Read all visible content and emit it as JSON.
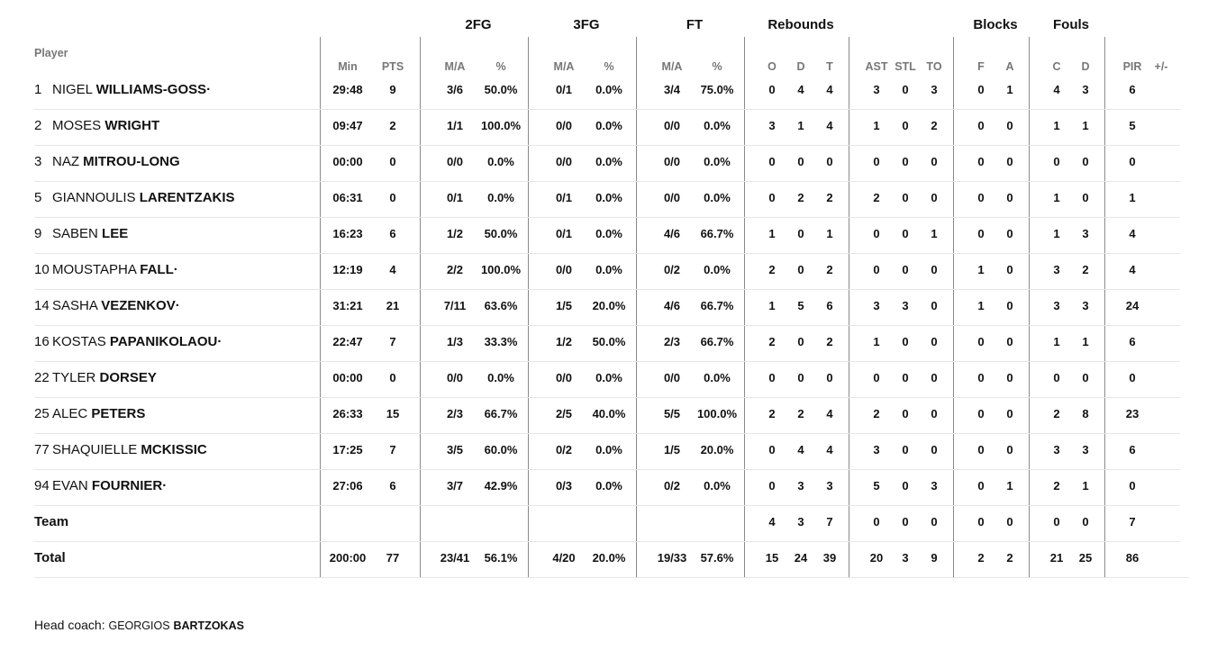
{
  "groups": [
    {
      "label": "2FG",
      "center": 531
    },
    {
      "label": "3FG",
      "center": 651
    },
    {
      "label": "FT",
      "center": 771
    },
    {
      "label": "Rebounds",
      "center": 889
    },
    {
      "label": "Blocks",
      "center": 1105
    },
    {
      "label": "Fouls",
      "center": 1189
    }
  ],
  "player_header": "Player",
  "sub_headers": [
    "Min",
    "PTS",
    "M/A",
    "%",
    "M/A",
    "%",
    "M/A",
    "%",
    "O",
    "D",
    "T",
    "AST",
    "STL",
    "TO",
    "F",
    "A",
    "C",
    "D",
    "PIR",
    "+/-"
  ],
  "players": [
    {
      "number": "1",
      "first": "NIGEL",
      "last": "WILLIAMS-GOSS",
      "starter": "·",
      "stats": [
        "29:48",
        "9",
        "3/6",
        "50.0%",
        "0/1",
        "0.0%",
        "3/4",
        "75.0%",
        "0",
        "4",
        "4",
        "3",
        "0",
        "3",
        "0",
        "1",
        "4",
        "3",
        "6",
        ""
      ]
    },
    {
      "number": "2",
      "first": "MOSES",
      "last": "WRIGHT",
      "starter": "",
      "stats": [
        "09:47",
        "2",
        "1/1",
        "100.0%",
        "0/0",
        "0.0%",
        "0/0",
        "0.0%",
        "3",
        "1",
        "4",
        "1",
        "0",
        "2",
        "0",
        "0",
        "1",
        "1",
        "5",
        ""
      ]
    },
    {
      "number": "3",
      "first": "NAZ",
      "last": "MITROU-LONG",
      "starter": "",
      "stats": [
        "00:00",
        "0",
        "0/0",
        "0.0%",
        "0/0",
        "0.0%",
        "0/0",
        "0.0%",
        "0",
        "0",
        "0",
        "0",
        "0",
        "0",
        "0",
        "0",
        "0",
        "0",
        "0",
        ""
      ]
    },
    {
      "number": "5",
      "first": "GIANNOULIS",
      "last": "LARENTZAKIS",
      "starter": "",
      "stats": [
        "06:31",
        "0",
        "0/1",
        "0.0%",
        "0/1",
        "0.0%",
        "0/0",
        "0.0%",
        "0",
        "2",
        "2",
        "2",
        "0",
        "0",
        "0",
        "0",
        "1",
        "0",
        "1",
        ""
      ]
    },
    {
      "number": "9",
      "first": "SABEN",
      "last": "LEE",
      "starter": "",
      "stats": [
        "16:23",
        "6",
        "1/2",
        "50.0%",
        "0/1",
        "0.0%",
        "4/6",
        "66.7%",
        "1",
        "0",
        "1",
        "0",
        "0",
        "1",
        "0",
        "0",
        "1",
        "3",
        "4",
        ""
      ]
    },
    {
      "number": "10",
      "first": "MOUSTAPHA",
      "last": "FALL",
      "starter": "·",
      "stats": [
        "12:19",
        "4",
        "2/2",
        "100.0%",
        "0/0",
        "0.0%",
        "0/2",
        "0.0%",
        "2",
        "0",
        "2",
        "0",
        "0",
        "0",
        "1",
        "0",
        "3",
        "2",
        "4",
        ""
      ]
    },
    {
      "number": "14",
      "first": "SASHA",
      "last": "VEZENKOV",
      "starter": "·",
      "stats": [
        "31:21",
        "21",
        "7/11",
        "63.6%",
        "1/5",
        "20.0%",
        "4/6",
        "66.7%",
        "1",
        "5",
        "6",
        "3",
        "3",
        "0",
        "1",
        "0",
        "3",
        "3",
        "24",
        ""
      ]
    },
    {
      "number": "16",
      "first": "KOSTAS",
      "last": "PAPANIKOLAOU",
      "starter": "·",
      "stats": [
        "22:47",
        "7",
        "1/3",
        "33.3%",
        "1/2",
        "50.0%",
        "2/3",
        "66.7%",
        "2",
        "0",
        "2",
        "1",
        "0",
        "0",
        "0",
        "0",
        "1",
        "1",
        "6",
        ""
      ]
    },
    {
      "number": "22",
      "first": "TYLER",
      "last": "DORSEY",
      "starter": "",
      "stats": [
        "00:00",
        "0",
        "0/0",
        "0.0%",
        "0/0",
        "0.0%",
        "0/0",
        "0.0%",
        "0",
        "0",
        "0",
        "0",
        "0",
        "0",
        "0",
        "0",
        "0",
        "0",
        "0",
        ""
      ]
    },
    {
      "number": "25",
      "first": "ALEC",
      "last": "PETERS",
      "starter": "",
      "stats": [
        "26:33",
        "15",
        "2/3",
        "66.7%",
        "2/5",
        "40.0%",
        "5/5",
        "100.0%",
        "2",
        "2",
        "4",
        "2",
        "0",
        "0",
        "0",
        "0",
        "2",
        "8",
        "23",
        ""
      ]
    },
    {
      "number": "77",
      "first": "SHAQUIELLE",
      "last": "MCKISSIC",
      "starter": "",
      "stats": [
        "17:25",
        "7",
        "3/5",
        "60.0%",
        "0/2",
        "0.0%",
        "1/5",
        "20.0%",
        "0",
        "4",
        "4",
        "3",
        "0",
        "0",
        "0",
        "0",
        "3",
        "3",
        "6",
        ""
      ]
    },
    {
      "number": "94",
      "first": "EVAN",
      "last": "FOURNIER",
      "starter": "·",
      "stats": [
        "27:06",
        "6",
        "3/7",
        "42.9%",
        "0/3",
        "0.0%",
        "0/2",
        "0.0%",
        "0",
        "3",
        "3",
        "5",
        "0",
        "3",
        "0",
        "1",
        "2",
        "1",
        "0",
        ""
      ]
    }
  ],
  "team": {
    "label": "Team",
    "stats": [
      "",
      "",
      "",
      "",
      "",
      "",
      "",
      "",
      "4",
      "3",
      "7",
      "0",
      "0",
      "0",
      "0",
      "0",
      "0",
      "0",
      "7",
      ""
    ]
  },
  "total": {
    "label": "Total",
    "stats": [
      "200:00",
      "77",
      "23/41",
      "56.1%",
      "4/20",
      "20.0%",
      "19/33",
      "57.6%",
      "15",
      "24",
      "39",
      "20",
      "3",
      "9",
      "2",
      "2",
      "21",
      "25",
      "86",
      ""
    ]
  },
  "head_coach": {
    "label": "Head coach:",
    "first": "GEORGIOS",
    "last": "BARTZOKAS"
  }
}
